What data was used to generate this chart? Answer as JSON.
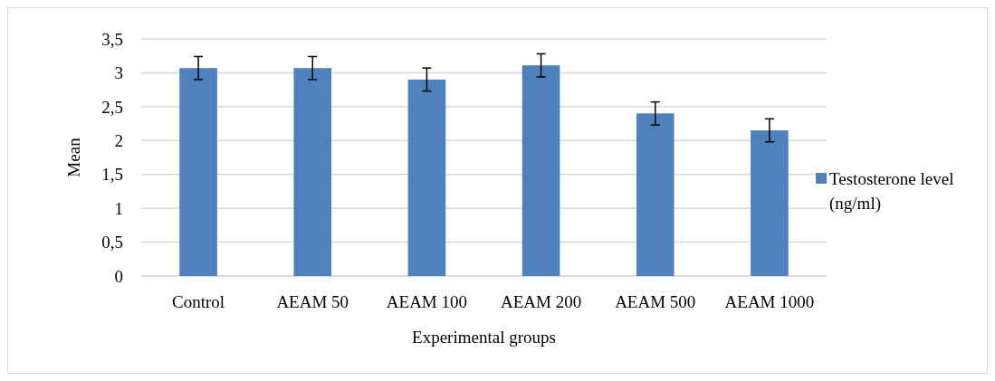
{
  "chart_data": {
    "type": "bar",
    "xlabel": "Experimental groups",
    "ylabel": "Mean",
    "categories": [
      "Control",
      "AEAM 50",
      "AEAM 100",
      "AEAM 200",
      "AEAM 500",
      "AEAM 1000"
    ],
    "series": [
      {
        "name": "Testosterone level (ng/ml)",
        "color": "#4f81bd",
        "values": [
          3.07,
          3.07,
          2.9,
          3.11,
          2.4,
          2.15
        ],
        "errors": [
          0.17,
          0.17,
          0.17,
          0.17,
          0.17,
          0.17
        ]
      }
    ],
    "ylim": [
      0,
      3.5
    ],
    "yticks": [
      0,
      {
        "value": 0.5,
        "label": "0,5"
      },
      1,
      {
        "value": 1.5,
        "label": "1,5"
      },
      2,
      {
        "value": 2.5,
        "label": "2,5"
      },
      3,
      {
        "value": 3.5,
        "label": "3,5"
      }
    ],
    "grid": "y",
    "legend": "right"
  }
}
